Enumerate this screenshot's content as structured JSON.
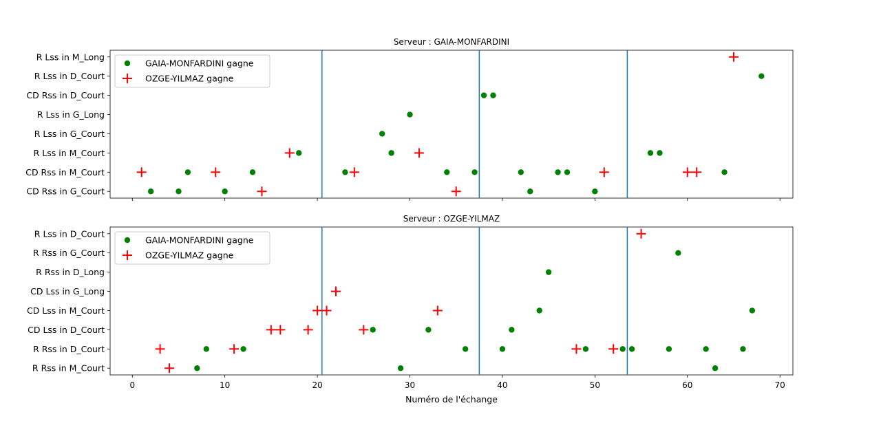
{
  "chart_data": [
    {
      "type": "scatter",
      "title": "Serveur : GAIA-MONFARDINI",
      "xlabel": "",
      "ylabel": "",
      "xlim": [
        -2.4,
        71.4
      ],
      "xticks": [
        0,
        10,
        20,
        30,
        40,
        50,
        60,
        70
      ],
      "show_xtick_labels": false,
      "categories": [
        "CD Rss in G_Court",
        "CD Rss in M_Court",
        "R Lss in M_Court",
        "R Lss in G_Court",
        "R Lss in G_Long",
        "CD Rss in D_Court",
        "R Lss in D_Court",
        "R Lss in M_Long"
      ],
      "vlines": [
        20.5,
        37.5,
        53.5
      ],
      "vline_color": "#1f77b4",
      "legend_position": "top-left",
      "series": [
        {
          "name": "GAIA-MONFARDINI gagne",
          "marker": "dot",
          "color": "#008000",
          "points": [
            {
              "x": 2,
              "y": "CD Rss in G_Court"
            },
            {
              "x": 5,
              "y": "CD Rss in G_Court"
            },
            {
              "x": 10,
              "y": "CD Rss in G_Court"
            },
            {
              "x": 43,
              "y": "CD Rss in G_Court"
            },
            {
              "x": 50,
              "y": "CD Rss in G_Court"
            },
            {
              "x": 6,
              "y": "CD Rss in M_Court"
            },
            {
              "x": 13,
              "y": "CD Rss in M_Court"
            },
            {
              "x": 23,
              "y": "CD Rss in M_Court"
            },
            {
              "x": 34,
              "y": "CD Rss in M_Court"
            },
            {
              "x": 37,
              "y": "CD Rss in M_Court"
            },
            {
              "x": 42,
              "y": "CD Rss in M_Court"
            },
            {
              "x": 46,
              "y": "CD Rss in M_Court"
            },
            {
              "x": 47,
              "y": "CD Rss in M_Court"
            },
            {
              "x": 64,
              "y": "CD Rss in M_Court"
            },
            {
              "x": 18,
              "y": "R Lss in M_Court"
            },
            {
              "x": 28,
              "y": "R Lss in M_Court"
            },
            {
              "x": 56,
              "y": "R Lss in M_Court"
            },
            {
              "x": 57,
              "y": "R Lss in M_Court"
            },
            {
              "x": 27,
              "y": "R Lss in G_Court"
            },
            {
              "x": 30,
              "y": "R Lss in G_Long"
            },
            {
              "x": 38,
              "y": "CD Rss in D_Court"
            },
            {
              "x": 39,
              "y": "CD Rss in D_Court"
            },
            {
              "x": 68,
              "y": "R Lss in D_Court"
            }
          ]
        },
        {
          "name": "OZGE-YILMAZ gagne",
          "marker": "plus",
          "color": "#ff0000",
          "points": [
            {
              "x": 14,
              "y": "CD Rss in G_Court"
            },
            {
              "x": 35,
              "y": "CD Rss in G_Court"
            },
            {
              "x": 1,
              "y": "CD Rss in M_Court"
            },
            {
              "x": 9,
              "y": "CD Rss in M_Court"
            },
            {
              "x": 24,
              "y": "CD Rss in M_Court"
            },
            {
              "x": 51,
              "y": "CD Rss in M_Court"
            },
            {
              "x": 60,
              "y": "CD Rss in M_Court"
            },
            {
              "x": 61,
              "y": "CD Rss in M_Court"
            },
            {
              "x": 17,
              "y": "R Lss in M_Court"
            },
            {
              "x": 31,
              "y": "R Lss in M_Court"
            },
            {
              "x": 65,
              "y": "R Lss in M_Long"
            }
          ]
        }
      ]
    },
    {
      "type": "scatter",
      "title": "Serveur : OZGE-YILMAZ",
      "xlabel": "Numéro de l'échange",
      "ylabel": "",
      "xlim": [
        -2.4,
        71.4
      ],
      "xticks": [
        0,
        10,
        20,
        30,
        40,
        50,
        60,
        70
      ],
      "show_xtick_labels": true,
      "categories": [
        "R Rss in M_Court",
        "R Rss in D_Court",
        "CD Lss in D_Court",
        "CD Lss in M_Court",
        "CD Lss in G_Long",
        "R Rss in D_Long",
        "R Rss in G_Court",
        "R Lss in D_Court"
      ],
      "vlines": [
        20.5,
        37.5,
        53.5
      ],
      "vline_color": "#1f77b4",
      "legend_position": "top-left",
      "series": [
        {
          "name": "GAIA-MONFARDINI gagne",
          "marker": "dot",
          "color": "#008000",
          "points": [
            {
              "x": 7,
              "y": "R Rss in M_Court"
            },
            {
              "x": 29,
              "y": "R Rss in M_Court"
            },
            {
              "x": 63,
              "y": "R Rss in M_Court"
            },
            {
              "x": 8,
              "y": "R Rss in D_Court"
            },
            {
              "x": 12,
              "y": "R Rss in D_Court"
            },
            {
              "x": 36,
              "y": "R Rss in D_Court"
            },
            {
              "x": 40,
              "y": "R Rss in D_Court"
            },
            {
              "x": 49,
              "y": "R Rss in D_Court"
            },
            {
              "x": 53,
              "y": "R Rss in D_Court"
            },
            {
              "x": 54,
              "y": "R Rss in D_Court"
            },
            {
              "x": 58,
              "y": "R Rss in D_Court"
            },
            {
              "x": 62,
              "y": "R Rss in D_Court"
            },
            {
              "x": 66,
              "y": "R Rss in D_Court"
            },
            {
              "x": 26,
              "y": "CD Lss in D_Court"
            },
            {
              "x": 32,
              "y": "CD Lss in D_Court"
            },
            {
              "x": 41,
              "y": "CD Lss in D_Court"
            },
            {
              "x": 44,
              "y": "CD Lss in M_Court"
            },
            {
              "x": 67,
              "y": "CD Lss in M_Court"
            },
            {
              "x": 45,
              "y": "R Rss in D_Long"
            },
            {
              "x": 59,
              "y": "R Rss in G_Court"
            }
          ]
        },
        {
          "name": "OZGE-YILMAZ gagne",
          "marker": "plus",
          "color": "#ff0000",
          "points": [
            {
              "x": 4,
              "y": "R Rss in M_Court"
            },
            {
              "x": 3,
              "y": "R Rss in D_Court"
            },
            {
              "x": 11,
              "y": "R Rss in D_Court"
            },
            {
              "x": 48,
              "y": "R Rss in D_Court"
            },
            {
              "x": 52,
              "y": "R Rss in D_Court"
            },
            {
              "x": 15,
              "y": "CD Lss in D_Court"
            },
            {
              "x": 16,
              "y": "CD Lss in D_Court"
            },
            {
              "x": 19,
              "y": "CD Lss in D_Court"
            },
            {
              "x": 25,
              "y": "CD Lss in D_Court"
            },
            {
              "x": 20,
              "y": "CD Lss in M_Court"
            },
            {
              "x": 21,
              "y": "CD Lss in M_Court"
            },
            {
              "x": 33,
              "y": "CD Lss in M_Court"
            },
            {
              "x": 22,
              "y": "CD Lss in G_Long"
            },
            {
              "x": 55,
              "y": "R Lss in D_Court"
            }
          ]
        }
      ]
    }
  ]
}
